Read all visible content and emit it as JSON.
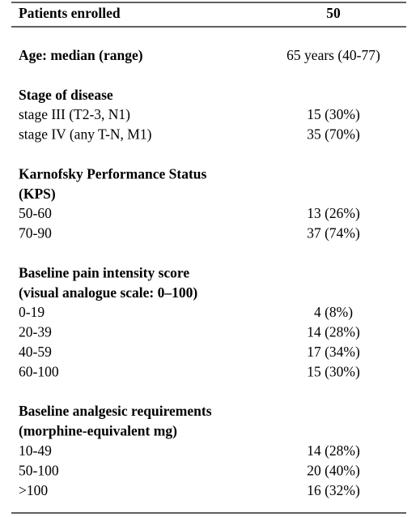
{
  "header": {
    "label": "Patients enrolled",
    "value": "50"
  },
  "sections": [
    {
      "heading": [
        "Age: median (range)"
      ],
      "value": "65 years (40-77)",
      "rows": []
    },
    {
      "heading": [
        "Stage of disease"
      ],
      "rows": [
        [
          "stage III (T2-3, N1)",
          "15 (30%)"
        ],
        [
          "stage IV (any T-N, M1)",
          "35 (70%)"
        ]
      ]
    },
    {
      "heading": [
        "Karnofsky Performance Status",
        "(KPS)"
      ],
      "rows": [
        [
          "50-60",
          "13 (26%)"
        ],
        [
          "70-90",
          "37 (74%)"
        ]
      ]
    },
    {
      "heading": [
        "Baseline pain intensity score",
        "(visual analogue scale: 0–100)"
      ],
      "rows": [
        [
          "0-19",
          "4 (8%)"
        ],
        [
          "20-39",
          "14 (28%)"
        ],
        [
          "40-59",
          "17 (34%)"
        ],
        [
          "60-100",
          "15 (30%)"
        ]
      ]
    },
    {
      "heading": [
        "Baseline analgesic requirements",
        "(morphine-equivalent mg)"
      ],
      "rows": [
        [
          "10-49",
          "14 (28%)"
        ],
        [
          "50-100",
          "20 (40%)"
        ],
        [
          ">100",
          "16 (32%)"
        ]
      ]
    }
  ]
}
